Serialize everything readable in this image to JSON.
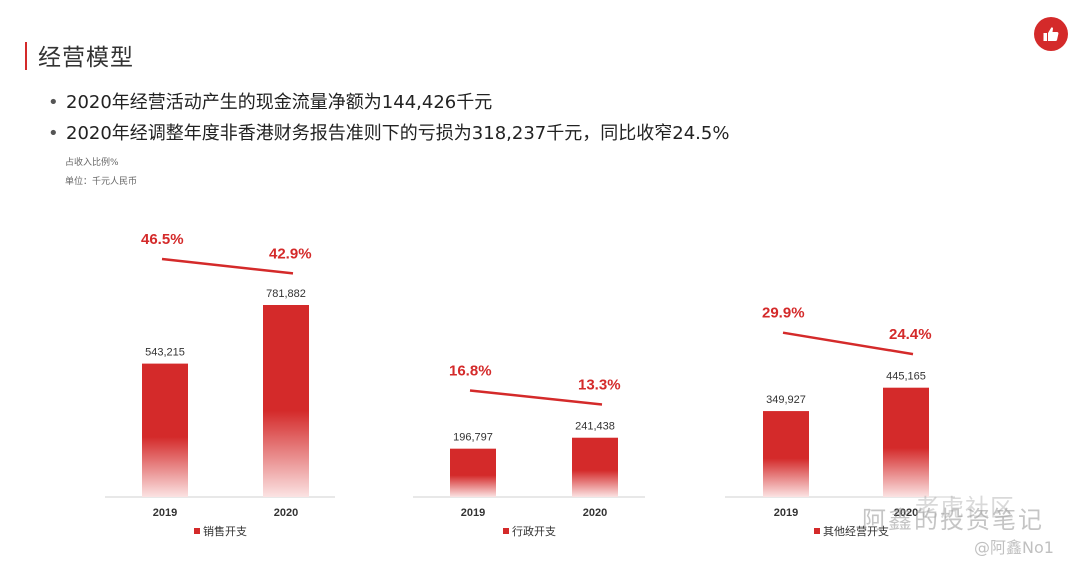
{
  "header": {
    "title": "经营模型",
    "bullets": [
      "2020年经营活动产生的现金流量净额为144,426千元",
      "2020年经调整年度非香港财务报告准则下的亏损为318,237千元，同比收窄24.5%"
    ],
    "note_ratio": "占收入比例%",
    "note_unit": "单位：千元人民币"
  },
  "watermark": {
    "brand": "老虎社区",
    "wechat": "阿鑫的投资笔记",
    "handle": "@阿鑫No1"
  },
  "colors": {
    "accent": "#d42a2a",
    "bar_top": "#d42a2a",
    "bar_bottom": "#fbe3e3"
  },
  "chart_data": [
    {
      "type": "bar",
      "categories": [
        "2019",
        "2020"
      ],
      "series": [
        {
          "name": "销售开支",
          "values": [
            543215,
            781882
          ]
        }
      ],
      "data_labels": [
        "543,215",
        "781,882"
      ],
      "ratio_labels": [
        "46.5%",
        "42.9%"
      ],
      "ratio_values": [
        46.5,
        42.9
      ],
      "title": "",
      "xlabel": "",
      "ylabel": ""
    },
    {
      "type": "bar",
      "categories": [
        "2019",
        "2020"
      ],
      "series": [
        {
          "name": "行政开支",
          "values": [
            196797,
            241438
          ]
        }
      ],
      "data_labels": [
        "196,797",
        "241,438"
      ],
      "ratio_labels": [
        "16.8%",
        "13.3%"
      ],
      "ratio_values": [
        16.8,
        13.3
      ],
      "title": "",
      "xlabel": "",
      "ylabel": ""
    },
    {
      "type": "bar",
      "categories": [
        "2019",
        "2020"
      ],
      "series": [
        {
          "name": "其他经营开支",
          "values": [
            349927,
            445165
          ]
        }
      ],
      "data_labels": [
        "349,927",
        "445,165"
      ],
      "ratio_labels": [
        "29.9%",
        "24.4%"
      ],
      "ratio_values": [
        29.9,
        24.4
      ],
      "title": "",
      "xlabel": "",
      "ylabel": ""
    }
  ]
}
